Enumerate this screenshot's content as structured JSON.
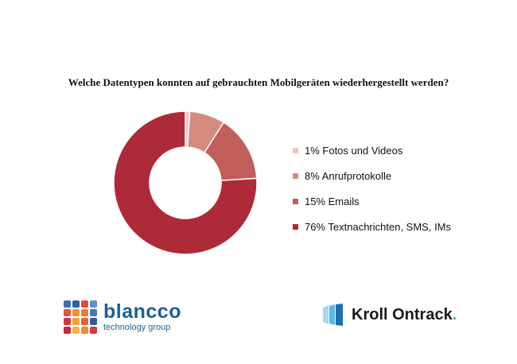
{
  "chart_data": {
    "type": "pie",
    "title": "Welche Datentypen konnten auf gebrauchten Mobilgeräten wiederhergestellt werden?",
    "slices": [
      {
        "label": "1% Fotos und Videos",
        "value": 1,
        "color": "#edc5bd"
      },
      {
        "label": "8% Anrufprotokolle",
        "value": 8,
        "color": "#d58a80"
      },
      {
        "label": "15% Emails",
        "value": 15,
        "color": "#c05e5a"
      },
      {
        "label": "76% Textnachrichten, SMS, IMs",
        "value": 76,
        "color": "#ad2a39"
      }
    ],
    "legend_position": "right"
  },
  "logos": {
    "blancco": {
      "name": "blancco",
      "tagline": "technology group",
      "color": "#1c5f9a",
      "dot_colors": [
        "#3a6fb5",
        "#2e5fa8",
        "#e04a3c",
        "#5c8fcf",
        "#e3553f",
        "#f0923a",
        "#ec7a36",
        "#4576bd",
        "#d7333b",
        "#f2a13d",
        "#e6602f",
        "#2f5b9e",
        "#c9283b",
        "#f3b34a",
        "#ef8a34",
        "#d4364a"
      ]
    },
    "kroll": {
      "name": "Kroll Ontrack",
      "dot": ".",
      "color": "#1a1a1a",
      "accent": "#3aa9e0"
    }
  }
}
